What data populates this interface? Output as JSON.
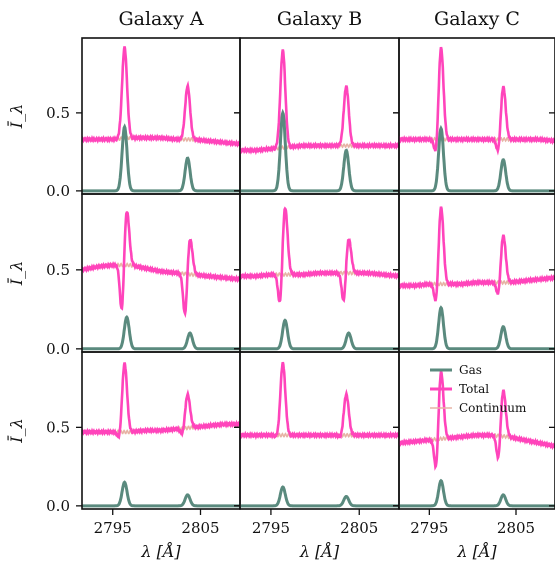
{
  "chart_data": {
    "type": "line",
    "column_titles": [
      "Galaxy A",
      "Galaxy B",
      "Galaxy C"
    ],
    "xlabel": "λ [Å]",
    "ylabel": "Ī_λ",
    "xlim": [
      2791.5,
      2809.5
    ],
    "ylim": [
      -0.02,
      0.98
    ],
    "xticks": [
      2795,
      2805
    ],
    "yticks": [
      0.0,
      0.5
    ],
    "legend": {
      "location": "panel row 3, column 3, top-right",
      "entries": [
        {
          "name": "Gas",
          "color": "#5a8a7e"
        },
        {
          "name": "Total",
          "color": "#ff44bb"
        },
        {
          "name": "Continuum",
          "color": "#e7b3a5"
        }
      ]
    },
    "line_centers": [
      2796.35,
      2803.53
    ],
    "panels": [
      {
        "row": 1,
        "col": 1,
        "continuum": [
          0.33,
          0.33,
          0.33,
          0.34,
          0.34,
          0.34,
          0.33,
          0.33,
          0.32,
          0.31,
          0.3
        ],
        "lines": [
          {
            "center": 2796.35,
            "gas_peak": 0.41,
            "total_peak": 0.92,
            "abs_depth": 0.0
          },
          {
            "center": 2803.53,
            "gas_peak": 0.21,
            "total_peak": 0.67,
            "abs_depth": 0.0
          }
        ]
      },
      {
        "row": 1,
        "col": 2,
        "continuum": [
          0.26,
          0.26,
          0.27,
          0.28,
          0.29,
          0.29,
          0.29,
          0.29,
          0.29,
          0.29,
          0.29
        ],
        "lines": [
          {
            "center": 2796.35,
            "gas_peak": 0.5,
            "total_peak": 0.9,
            "abs_depth": 0.0
          },
          {
            "center": 2803.53,
            "gas_peak": 0.26,
            "total_peak": 0.67,
            "abs_depth": 0.0
          }
        ]
      },
      {
        "row": 1,
        "col": 3,
        "continuum": [
          0.33,
          0.33,
          0.33,
          0.33,
          0.33,
          0.33,
          0.33,
          0.33,
          0.33,
          0.33,
          0.32
        ],
        "lines": [
          {
            "center": 2796.35,
            "gas_peak": 0.4,
            "total_peak": 0.92,
            "abs_depth": 0.12
          },
          {
            "center": 2803.53,
            "gas_peak": 0.2,
            "total_peak": 0.67,
            "abs_depth": 0.1
          }
        ]
      },
      {
        "row": 2,
        "col": 1,
        "continuum": [
          0.5,
          0.52,
          0.53,
          0.53,
          0.51,
          0.49,
          0.48,
          0.47,
          0.46,
          0.45,
          0.44
        ],
        "lines": [
          {
            "center": 2796.6,
            "gas_peak": 0.2,
            "total_peak": 0.88,
            "abs_depth": 0.32
          },
          {
            "center": 2803.8,
            "gas_peak": 0.1,
            "total_peak": 0.7,
            "abs_depth": 0.28
          }
        ]
      },
      {
        "row": 2,
        "col": 2,
        "continuum": [
          0.46,
          0.46,
          0.47,
          0.47,
          0.47,
          0.48,
          0.48,
          0.48,
          0.48,
          0.47,
          0.46
        ],
        "lines": [
          {
            "center": 2796.6,
            "gas_peak": 0.18,
            "total_peak": 0.9,
            "abs_depth": 0.22
          },
          {
            "center": 2803.8,
            "gas_peak": 0.1,
            "total_peak": 0.7,
            "abs_depth": 0.2
          }
        ]
      },
      {
        "row": 2,
        "col": 3,
        "continuum": [
          0.4,
          0.4,
          0.41,
          0.41,
          0.41,
          0.42,
          0.42,
          0.42,
          0.43,
          0.44,
          0.45
        ],
        "lines": [
          {
            "center": 2796.35,
            "gas_peak": 0.26,
            "total_peak": 0.9,
            "abs_depth": 0.15
          },
          {
            "center": 2803.53,
            "gas_peak": 0.14,
            "total_peak": 0.72,
            "abs_depth": 0.1
          }
        ]
      },
      {
        "row": 3,
        "col": 1,
        "continuum": [
          0.47,
          0.47,
          0.47,
          0.47,
          0.48,
          0.48,
          0.49,
          0.5,
          0.51,
          0.52,
          0.52
        ],
        "lines": [
          {
            "center": 2796.35,
            "gas_peak": 0.15,
            "total_peak": 0.91,
            "abs_depth": 0.06
          },
          {
            "center": 2803.53,
            "gas_peak": 0.07,
            "total_peak": 0.71,
            "abs_depth": 0.05
          }
        ]
      },
      {
        "row": 3,
        "col": 2,
        "continuum": [
          0.45,
          0.45,
          0.45,
          0.45,
          0.45,
          0.45,
          0.45,
          0.45,
          0.45,
          0.45,
          0.45
        ],
        "lines": [
          {
            "center": 2796.35,
            "gas_peak": 0.12,
            "total_peak": 0.91,
            "abs_depth": 0.02
          },
          {
            "center": 2803.53,
            "gas_peak": 0.06,
            "total_peak": 0.71,
            "abs_depth": 0.02
          }
        ]
      },
      {
        "row": 3,
        "col": 3,
        "continuum": [
          0.4,
          0.41,
          0.42,
          0.43,
          0.44,
          0.45,
          0.45,
          0.44,
          0.42,
          0.4,
          0.38
        ],
        "lines": [
          {
            "center": 2796.35,
            "gas_peak": 0.16,
            "total_peak": 0.86,
            "abs_depth": 0.22
          },
          {
            "center": 2803.53,
            "gas_peak": 0.07,
            "total_peak": 0.74,
            "abs_depth": 0.17
          }
        ]
      }
    ]
  }
}
